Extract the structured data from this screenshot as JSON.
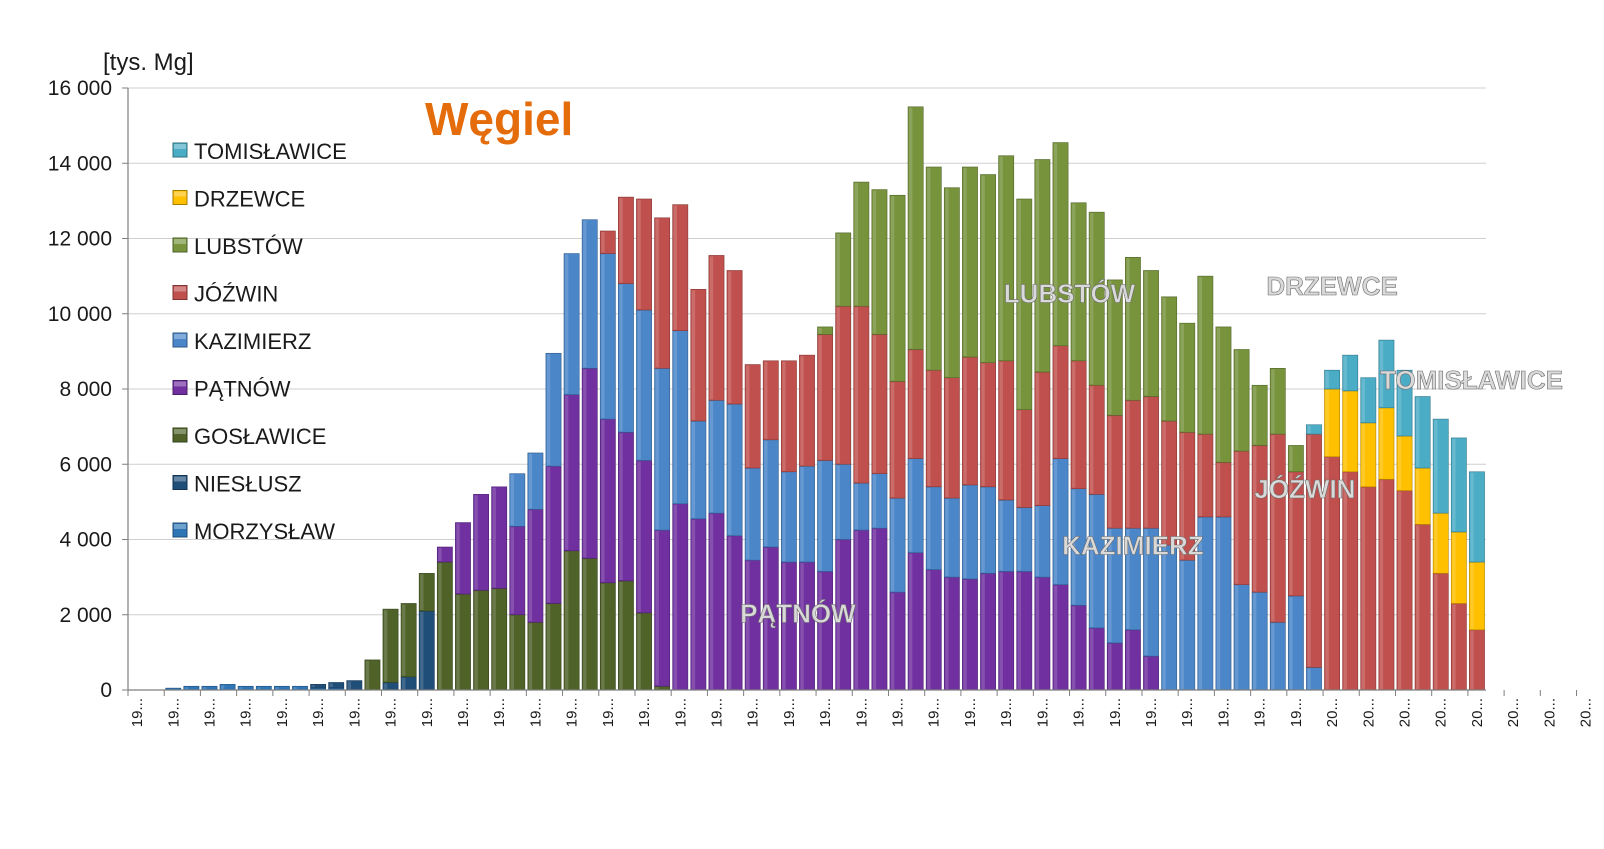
{
  "chart_data": {
    "type": "bar",
    "stacked": true,
    "title": "Węgiel",
    "title_color": "#e46c0a",
    "ylabel": "[tys. Mg]",
    "ylim": [
      0,
      16000
    ],
    "yticks": [
      0,
      2000,
      4000,
      6000,
      8000,
      10000,
      12000,
      14000,
      16000
    ],
    "ytick_labels": [
      "0",
      "2 000",
      "4 000",
      "6 000",
      "8 000",
      "10 000",
      "12 000",
      "14 000",
      "16 000"
    ],
    "grid": true,
    "legend_position": "top-left",
    "x_tick_labels": [
      "19...",
      "19...",
      "19...",
      "19...",
      "19...",
      "19...",
      "19...",
      "19...",
      "19...",
      "19...",
      "19...",
      "19...",
      "19...",
      "19...",
      "19...",
      "19...",
      "19...",
      "19...",
      "19...",
      "19...",
      "19...",
      "19...",
      "19...",
      "19...",
      "19...",
      "19...",
      "19...",
      "19...",
      "19...",
      "19...",
      "19...",
      "19...",
      "19...",
      "20...",
      "20...",
      "20...",
      "20...",
      "20...",
      "20...",
      "20...",
      "20...",
      "20...",
      "20...",
      "20...",
      "20..."
    ],
    "categories_count": 75,
    "series": [
      {
        "name": "MORZYSŁAW",
        "color": "#2e75b6",
        "values": [
          0,
          0,
          50,
          100,
          100,
          150,
          100,
          100,
          100,
          100,
          50,
          50,
          0,
          0,
          0,
          0,
          0,
          0,
          0,
          0,
          0,
          0,
          0,
          0,
          0,
          0,
          0,
          0,
          0,
          0,
          0,
          0,
          0,
          0,
          0,
          0,
          0,
          0,
          0,
          0,
          0,
          0,
          0,
          0,
          0,
          0,
          0,
          0,
          0,
          0,
          0,
          0,
          0,
          0,
          0,
          0,
          0,
          0,
          0,
          0,
          0,
          0,
          0,
          0,
          0,
          0,
          0,
          0,
          0,
          0,
          0,
          0,
          0,
          0,
          0
        ]
      },
      {
        "name": "NIESŁUSZ",
        "color": "#1f4e79",
        "values": [
          0,
          0,
          0,
          0,
          0,
          0,
          0,
          0,
          0,
          0,
          100,
          150,
          250,
          0,
          200,
          350,
          2100,
          0,
          0,
          0,
          0,
          0,
          0,
          0,
          0,
          0,
          0,
          0,
          0,
          0,
          0,
          0,
          0,
          0,
          0,
          0,
          0,
          0,
          0,
          0,
          0,
          0,
          0,
          0,
          0,
          0,
          0,
          0,
          0,
          0,
          0,
          0,
          0,
          0,
          0,
          0,
          0,
          0,
          0,
          0,
          0,
          0,
          0,
          0,
          0,
          0,
          0,
          0,
          0,
          0,
          0,
          0,
          0,
          0,
          0
        ]
      },
      {
        "name": "GOSŁAWICE",
        "color": "#4f6228",
        "values": [
          0,
          0,
          0,
          0,
          0,
          0,
          0,
          0,
          0,
          0,
          0,
          0,
          0,
          800,
          1950,
          1950,
          1000,
          3400,
          2550,
          2650,
          2700,
          2000,
          1800,
          2300,
          3700,
          3500,
          2850,
          2900,
          2050,
          100,
          0,
          0,
          0,
          0,
          0,
          0,
          0,
          0,
          0,
          0,
          0,
          0,
          0,
          0,
          0,
          0,
          0,
          0,
          0,
          0,
          0,
          0,
          0,
          0,
          0,
          0,
          0,
          0,
          0,
          0,
          0,
          0,
          0,
          0,
          0,
          0,
          0,
          0,
          0,
          0,
          0,
          0,
          0,
          0,
          0
        ]
      },
      {
        "name": "PĄTNÓW",
        "color": "#7030a0",
        "values": [
          0,
          0,
          0,
          0,
          0,
          0,
          0,
          0,
          0,
          0,
          0,
          0,
          0,
          0,
          0,
          0,
          0,
          400,
          1900,
          2550,
          2700,
          2350,
          3000,
          3650,
          4150,
          5050,
          4350,
          3950,
          4050,
          4150,
          4950,
          4550,
          4700,
          4100,
          3450,
          3800,
          3400,
          3400,
          3150,
          4000,
          4250,
          4300,
          2600,
          3650,
          3200,
          3000,
          2950,
          3100,
          3150,
          3150,
          3000,
          2800,
          2250,
          1650,
          1250,
          1600,
          900,
          0,
          0,
          0,
          0,
          0,
          0,
          0,
          0,
          0,
          0,
          0,
          0,
          0,
          0,
          0,
          0,
          0,
          0
        ]
      },
      {
        "name": "KAZIMIERZ",
        "color": "#4a86c8",
        "values": [
          0,
          0,
          0,
          0,
          0,
          0,
          0,
          0,
          0,
          0,
          0,
          0,
          0,
          0,
          0,
          0,
          0,
          0,
          0,
          0,
          0,
          1400,
          1500,
          3000,
          3750,
          3950,
          4400,
          3950,
          4000,
          4300,
          4600,
          2600,
          3000,
          3500,
          2450,
          2850,
          2400,
          2550,
          2950,
          2000,
          1250,
          1450,
          2500,
          2500,
          2200,
          2100,
          2500,
          2300,
          1900,
          1700,
          1900,
          3350,
          3100,
          3550,
          3050,
          2700,
          3400,
          3850,
          3450,
          4600,
          4600,
          2800,
          2600,
          1800,
          2500,
          600,
          0,
          0,
          0,
          0,
          0,
          0,
          0,
          0,
          0
        ]
      },
      {
        "name": "JÓŹWIN",
        "color": "#c0504d",
        "values": [
          0,
          0,
          0,
          0,
          0,
          0,
          0,
          0,
          0,
          0,
          0,
          0,
          0,
          0,
          0,
          0,
          0,
          0,
          0,
          0,
          0,
          0,
          0,
          0,
          0,
          0,
          600,
          2300,
          2950,
          4000,
          3350,
          3500,
          3850,
          3550,
          2750,
          2100,
          2950,
          2950,
          3350,
          4200,
          4700,
          3700,
          3100,
          2900,
          3100,
          3200,
          3400,
          3300,
          3700,
          2600,
          3550,
          3000,
          3400,
          2900,
          3000,
          3400,
          3500,
          3300,
          3400,
          2200,
          1450,
          3550,
          3900,
          5000,
          3300,
          6200,
          6200,
          5800,
          5400,
          5600,
          5300,
          4400,
          3100,
          2300,
          1600
        ]
      },
      {
        "name": "LUBSTÓW",
        "color": "#77933c",
        "values": [
          0,
          0,
          0,
          0,
          0,
          0,
          0,
          0,
          0,
          0,
          0,
          0,
          0,
          0,
          0,
          0,
          0,
          0,
          0,
          0,
          0,
          0,
          0,
          0,
          0,
          0,
          0,
          0,
          0,
          0,
          0,
          0,
          0,
          0,
          0,
          0,
          0,
          0,
          200,
          1950,
          3300,
          3850,
          4950,
          6450,
          5400,
          5050,
          5050,
          5000,
          5450,
          5600,
          5650,
          5400,
          4200,
          4600,
          3600,
          3800,
          3350,
          3300,
          2900,
          4200,
          3600,
          2700,
          1600,
          1750,
          700,
          0,
          0,
          0,
          0,
          0,
          0,
          0,
          0,
          0,
          0
        ]
      },
      {
        "name": "DRZEWCE",
        "color": "#ffc000",
        "values": [
          0,
          0,
          0,
          0,
          0,
          0,
          0,
          0,
          0,
          0,
          0,
          0,
          0,
          0,
          0,
          0,
          0,
          0,
          0,
          0,
          0,
          0,
          0,
          0,
          0,
          0,
          0,
          0,
          0,
          0,
          0,
          0,
          0,
          0,
          0,
          0,
          0,
          0,
          0,
          0,
          0,
          0,
          0,
          0,
          0,
          0,
          0,
          0,
          0,
          0,
          0,
          0,
          0,
          0,
          0,
          0,
          0,
          0,
          0,
          0,
          0,
          0,
          0,
          0,
          0,
          0,
          1800,
          2150,
          1700,
          1900,
          1450,
          1500,
          1600,
          1900,
          1800
        ]
      },
      {
        "name": "TOMISŁAWICE",
        "color": "#4bacc6",
        "values": [
          0,
          0,
          0,
          0,
          0,
          0,
          0,
          0,
          0,
          0,
          0,
          0,
          0,
          0,
          0,
          0,
          0,
          0,
          0,
          0,
          0,
          0,
          0,
          0,
          0,
          0,
          0,
          0,
          0,
          0,
          0,
          0,
          0,
          0,
          0,
          0,
          0,
          0,
          0,
          0,
          0,
          0,
          0,
          0,
          0,
          0,
          0,
          0,
          0,
          0,
          0,
          0,
          0,
          0,
          0,
          0,
          0,
          0,
          0,
          0,
          0,
          0,
          0,
          0,
          0,
          250,
          500,
          950,
          1200,
          1800,
          1750,
          1900,
          2500,
          2500,
          2400
        ]
      }
    ],
    "annotations": [
      {
        "text": "PĄTNÓW",
        "x": 37,
        "y": 1800
      },
      {
        "text": "KAZIMIERZ",
        "x": 55.5,
        "y": 3600
      },
      {
        "text": "JÓŹWIN",
        "x": 65,
        "y": 5100
      },
      {
        "text": "LUBSTÓW",
        "x": 52,
        "y": 10300
      },
      {
        "text": "DRZEWCE",
        "x": 66.5,
        "y": 10500
      },
      {
        "text": "TOMISŁAWICE",
        "x": 74.2,
        "y": 8000
      }
    ]
  }
}
